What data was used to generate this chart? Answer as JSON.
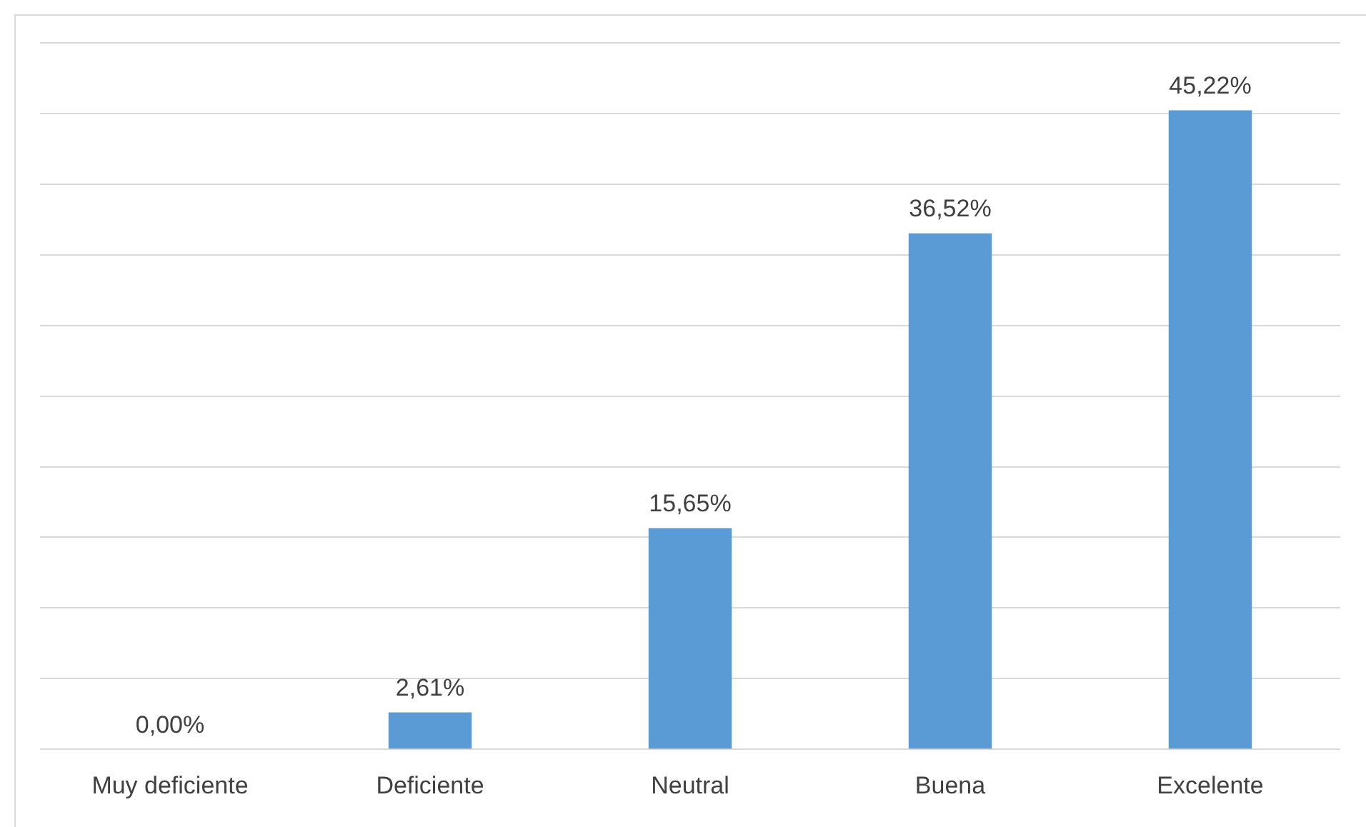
{
  "chart_data": {
    "type": "bar",
    "categories": [
      "Muy deficiente",
      "Deficiente",
      "Neutral",
      "Buena",
      "Excelente"
    ],
    "values": [
      0.0,
      2.61,
      15.65,
      36.52,
      45.22
    ],
    "color": "#5b9bd5",
    "value_labels": [
      "0,00%",
      "2,61%",
      "15,65%",
      "36,52%",
      "45,22%"
    ],
    "ylim": [
      0,
      50
    ],
    "yticks": [
      {
        "value": 0,
        "label": null
      },
      {
        "value": 5,
        "label": null
      },
      {
        "value": 10,
        "label": null
      },
      {
        "value": 15,
        "label": null
      },
      {
        "value": 20,
        "label": null
      },
      {
        "value": 25,
        "label": null
      },
      {
        "value": 30,
        "label": null
      },
      {
        "value": 35,
        "label": null
      },
      {
        "value": 40,
        "label": null
      },
      {
        "value": 45,
        "label": null
      },
      {
        "value": 50,
        "label": null
      }
    ],
    "grid": "y",
    "tick_labels": "x",
    "legend": false
  }
}
